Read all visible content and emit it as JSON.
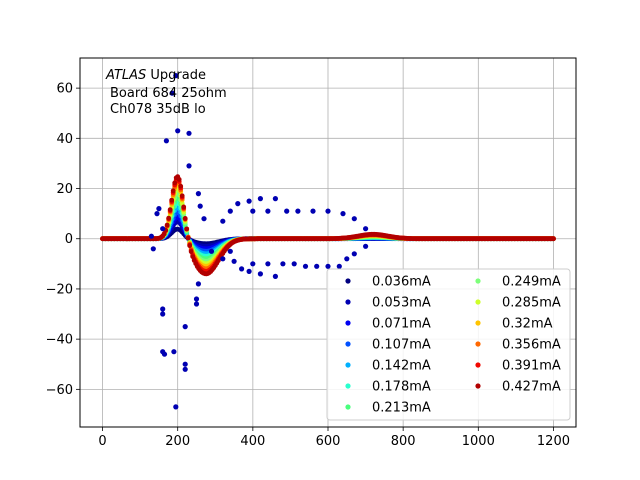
{
  "chart_data": {
    "type": "scatter",
    "annotation": {
      "italic_word": "ATLAS",
      "line1_rest": " Upgrade",
      "line2": "Board 684 25ohm",
      "line3": "Ch078 35dB lo"
    },
    "xlim": [
      -60,
      1260
    ],
    "ylim": [
      -75,
      72
    ],
    "x_ticks": [
      0,
      200,
      400,
      600,
      800,
      1000,
      1200
    ],
    "y_ticks": [
      -60,
      -40,
      -20,
      0,
      20,
      40,
      60
    ],
    "grid": true,
    "legend_position": "lower-right",
    "legend_columns": 2,
    "x_range_samples": [
      0,
      1200
    ],
    "series": [
      {
        "name": "0.036mA",
        "color": "#00007f",
        "peak": 4,
        "undershoot": -2
      },
      {
        "name": "0.053mA",
        "color": "#0000b2",
        "peak": 7,
        "undershoot": -3
      },
      {
        "name": "0.071mA",
        "color": "#0000f1",
        "peak": 9,
        "undershoot": -4
      },
      {
        "name": "0.107mA",
        "color": "#0050ff",
        "peak": 11,
        "undershoot": -5
      },
      {
        "name": "0.142mA",
        "color": "#00b0ff",
        "peak": 13,
        "undershoot": -6
      },
      {
        "name": "0.178mA",
        "color": "#29ffce",
        "peak": 15,
        "undershoot": -7
      },
      {
        "name": "0.213mA",
        "color": "#49ff7d",
        "peak": 17,
        "undershoot": -8
      },
      {
        "name": "0.249mA",
        "color": "#7dff7a",
        "peak": 19,
        "undershoot": -9
      },
      {
        "name": "0.285mA",
        "color": "#ceff29",
        "peak": 21,
        "undershoot": -10
      },
      {
        "name": "0.32mA",
        "color": "#ffc400",
        "peak": 23,
        "undershoot": -11
      },
      {
        "name": "0.356mA",
        "color": "#ff6800",
        "peak": 24,
        "undershoot": -12
      },
      {
        "name": "0.391mA",
        "color": "#f10800",
        "peak": 25,
        "undershoot": -13
      },
      {
        "name": "0.427mA",
        "color": "#b20000",
        "peak": 26,
        "undershoot": -14
      }
    ],
    "outlier_points": [
      {
        "x": 195,
        "y": 65
      },
      {
        "x": 185,
        "y": 58
      },
      {
        "x": 200,
        "y": 43
      },
      {
        "x": 230,
        "y": 42
      },
      {
        "x": 170,
        "y": 39
      },
      {
        "x": 230,
        "y": 29
      },
      {
        "x": 255,
        "y": 18
      },
      {
        "x": 260,
        "y": 13
      },
      {
        "x": 145,
        "y": 10
      },
      {
        "x": 150,
        "y": 12
      },
      {
        "x": 270,
        "y": 8
      },
      {
        "x": 320,
        "y": 7
      },
      {
        "x": 340,
        "y": 11
      },
      {
        "x": 360,
        "y": 14
      },
      {
        "x": 390,
        "y": 15
      },
      {
        "x": 400,
        "y": 11
      },
      {
        "x": 420,
        "y": 16
      },
      {
        "x": 440,
        "y": 11
      },
      {
        "x": 460,
        "y": 16
      },
      {
        "x": 490,
        "y": 11
      },
      {
        "x": 520,
        "y": 11
      },
      {
        "x": 560,
        "y": 11
      },
      {
        "x": 600,
        "y": 11
      },
      {
        "x": 640,
        "y": 10
      },
      {
        "x": 670,
        "y": 8
      },
      {
        "x": 700,
        "y": 4
      },
      {
        "x": 160,
        "y": 4
      },
      {
        "x": 130,
        "y": 1
      },
      {
        "x": 135,
        "y": -4
      },
      {
        "x": 160,
        "y": -28
      },
      {
        "x": 160,
        "y": -30
      },
      {
        "x": 160,
        "y": -45
      },
      {
        "x": 165,
        "y": -46
      },
      {
        "x": 190,
        "y": -45
      },
      {
        "x": 195,
        "y": -67
      },
      {
        "x": 220,
        "y": -50
      },
      {
        "x": 220,
        "y": -52
      },
      {
        "x": 220,
        "y": -35
      },
      {
        "x": 250,
        "y": -26
      },
      {
        "x": 250,
        "y": -24
      },
      {
        "x": 255,
        "y": -18
      },
      {
        "x": 290,
        "y": -5
      },
      {
        "x": 320,
        "y": -8
      },
      {
        "x": 340,
        "y": -5
      },
      {
        "x": 350,
        "y": -9
      },
      {
        "x": 370,
        "y": -12
      },
      {
        "x": 390,
        "y": -13
      },
      {
        "x": 400,
        "y": -10
      },
      {
        "x": 420,
        "y": -14
      },
      {
        "x": 440,
        "y": -10
      },
      {
        "x": 460,
        "y": -15
      },
      {
        "x": 480,
        "y": -10
      },
      {
        "x": 510,
        "y": -10
      },
      {
        "x": 540,
        "y": -11
      },
      {
        "x": 570,
        "y": -11
      },
      {
        "x": 600,
        "y": -11
      },
      {
        "x": 630,
        "y": -11
      },
      {
        "x": 650,
        "y": -8
      },
      {
        "x": 670,
        "y": -6
      },
      {
        "x": 700,
        "y": -3
      }
    ]
  }
}
